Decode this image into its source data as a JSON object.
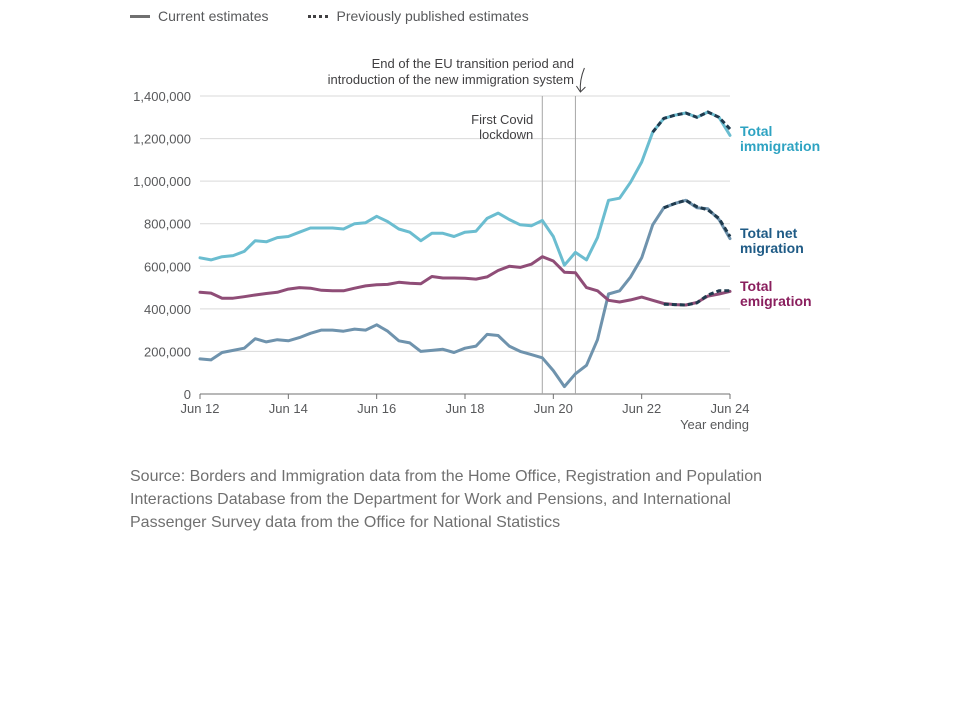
{
  "legend": {
    "current": "Current estimates",
    "previous": "Previously published estimates"
  },
  "source": [
    "Source: Borders and Immigration data from the Home Office, Registration and Population",
    "Interactions Database from the Department for Work and Pensions, and International",
    "Passenger Survey data from the Office for National Statistics"
  ],
  "colors": {
    "immigration": "#6bbdd0",
    "immigration_label": "#2ea3c2",
    "net": "#6f93ad",
    "net_label": "#1f5b86",
    "emigration": "#8f4d77",
    "emigration_label": "#8a1f5e",
    "dashed": "#1f3a4d",
    "grid": "#d9d9d9",
    "axis": "#707070",
    "ref_line": "#a6a6a6"
  },
  "chart_data": {
    "type": "line",
    "xlabel": "Year ending",
    "ylim": [
      0,
      1400000
    ],
    "yticks": [
      {
        "v": 0,
        "label": "0"
      },
      {
        "v": 200000,
        "label": "200,000"
      },
      {
        "v": 400000,
        "label": "400,000"
      },
      {
        "v": 600000,
        "label": "600,000"
      },
      {
        "v": 800000,
        "label": "800,000"
      },
      {
        "v": 1000000,
        "label": "1,000,000"
      },
      {
        "v": 1200000,
        "label": "1,200,000"
      },
      {
        "v": 1400000,
        "label": "1,400,000"
      }
    ],
    "xticks": [
      "Jun 12",
      "Jun 14",
      "Jun 16",
      "Jun 18",
      "Jun 20",
      "Jun 22",
      "Jun 24"
    ],
    "x": [
      "Jun 12",
      "Sep 12",
      "Dec 12",
      "Mar 13",
      "Jun 13",
      "Sep 13",
      "Dec 13",
      "Mar 14",
      "Jun 14",
      "Sep 14",
      "Dec 14",
      "Mar 15",
      "Jun 15",
      "Sep 15",
      "Dec 15",
      "Mar 16",
      "Jun 16",
      "Sep 16",
      "Dec 16",
      "Mar 17",
      "Jun 17",
      "Sep 17",
      "Dec 17",
      "Mar 18",
      "Jun 18",
      "Sep 18",
      "Dec 18",
      "Mar 19",
      "Jun 19",
      "Sep 19",
      "Dec 19",
      "Mar 20",
      "Jun 20",
      "Sep 20",
      "Dec 20",
      "Mar 21",
      "Jun 21",
      "Sep 21",
      "Dec 21",
      "Mar 22",
      "Jun 22",
      "Sep 22",
      "Dec 22",
      "Mar 23",
      "Jun 23",
      "Sep 23",
      "Dec 23",
      "Mar 24",
      "Jun 24"
    ],
    "series": [
      {
        "key": "immigration",
        "name": "Total immigration",
        "label_lines": [
          "Total",
          "immigration"
        ],
        "values": [
          640000,
          630000,
          645000,
          650000,
          670000,
          720000,
          715000,
          735000,
          740000,
          760000,
          780000,
          780000,
          780000,
          775000,
          800000,
          805000,
          835000,
          810000,
          775000,
          760000,
          720000,
          755000,
          755000,
          740000,
          760000,
          765000,
          825000,
          850000,
          820000,
          795000,
          790000,
          815000,
          740000,
          605000,
          665000,
          630000,
          735000,
          910000,
          920000,
          995000,
          1090000,
          1230000,
          1295000,
          1310000,
          1320000,
          1300000,
          1325000,
          1300000,
          1215000
        ],
        "previous": [
          null,
          null,
          null,
          null,
          null,
          null,
          null,
          null,
          null,
          null,
          null,
          null,
          null,
          null,
          null,
          null,
          null,
          null,
          null,
          null,
          null,
          null,
          null,
          null,
          null,
          null,
          null,
          null,
          null,
          null,
          null,
          null,
          null,
          null,
          null,
          null,
          null,
          null,
          null,
          null,
          null,
          1230000,
          1295000,
          1310000,
          1320000,
          1300000,
          1325000,
          1300000,
          1245000
        ]
      },
      {
        "key": "net",
        "name": "Total net migration",
        "label_lines": [
          "Total net",
          "migration"
        ],
        "values": [
          165000,
          160000,
          195000,
          205000,
          215000,
          260000,
          245000,
          255000,
          250000,
          265000,
          285000,
          300000,
          300000,
          295000,
          305000,
          300000,
          325000,
          295000,
          250000,
          240000,
          200000,
          205000,
          210000,
          195000,
          215000,
          225000,
          280000,
          275000,
          225000,
          200000,
          185000,
          170000,
          110000,
          35000,
          95000,
          135000,
          255000,
          470000,
          485000,
          550000,
          640000,
          795000,
          875000,
          895000,
          910000,
          875000,
          870000,
          820000,
          730000
        ],
        "previous": [
          null,
          null,
          null,
          null,
          null,
          null,
          null,
          null,
          null,
          null,
          null,
          null,
          null,
          null,
          null,
          null,
          null,
          null,
          null,
          null,
          null,
          null,
          null,
          null,
          null,
          null,
          null,
          null,
          null,
          null,
          null,
          null,
          null,
          null,
          null,
          null,
          null,
          null,
          null,
          null,
          null,
          null,
          875000,
          895000,
          910000,
          880000,
          865000,
          825000,
          740000
        ]
      },
      {
        "key": "emigration",
        "name": "Total emigration",
        "label_lines": [
          "Total",
          "emigration"
        ],
        "values": [
          478000,
          474000,
          450000,
          450000,
          457000,
          465000,
          472000,
          478000,
          493000,
          500000,
          497000,
          487000,
          485000,
          485000,
          497000,
          508000,
          513000,
          515000,
          525000,
          520000,
          518000,
          552000,
          545000,
          545000,
          544000,
          540000,
          550000,
          580000,
          600000,
          595000,
          610000,
          645000,
          625000,
          572000,
          570000,
          500000,
          485000,
          440000,
          432000,
          442000,
          455000,
          440000,
          425000,
          420000,
          418000,
          430000,
          460000,
          470000,
          482000
        ],
        "previous": [
          null,
          null,
          null,
          null,
          null,
          null,
          null,
          null,
          null,
          null,
          null,
          null,
          null,
          null,
          null,
          null,
          null,
          null,
          null,
          null,
          null,
          null,
          null,
          null,
          null,
          null,
          null,
          null,
          null,
          null,
          null,
          null,
          null,
          null,
          null,
          null,
          null,
          null,
          null,
          null,
          null,
          null,
          422000,
          420000,
          418000,
          428000,
          465000,
          485000,
          485000
        ]
      }
    ],
    "annotations": [
      {
        "x": "Mar 20",
        "lines": [
          "First Covid",
          "lockdown"
        ]
      },
      {
        "x": "Dec 20",
        "lines": [
          "End of the EU transition period and",
          "introduction of the new immigration system"
        ]
      }
    ],
    "grid": true,
    "legend_position": "top-left"
  }
}
